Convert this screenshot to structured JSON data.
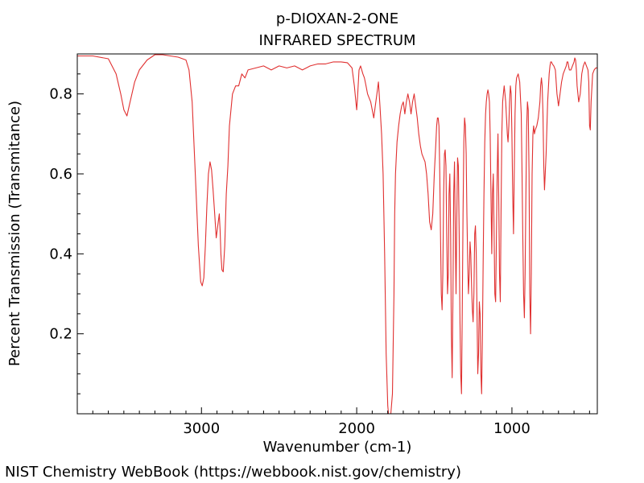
{
  "chart_data": {
    "type": "line",
    "title": "p-DIOXAN-2-ONE",
    "subtitle": "INFRARED SPECTRUM",
    "xlabel": "Wavenumber (cm-1)",
    "ylabel": "Percent Transmission (Transmitance)",
    "xlim": [
      3800,
      450
    ],
    "ylim": [
      0.0,
      0.9
    ],
    "x_reversed": true,
    "x_ticks": [
      3000,
      2000,
      1000
    ],
    "x_tick_labels": [
      "3000",
      "2000",
      "1000"
    ],
    "y_ticks": [
      0.2,
      0.4,
      0.6,
      0.8
    ],
    "y_tick_labels": [
      "0.2",
      "0.4",
      "0.6",
      "0.8"
    ],
    "grid": false,
    "line_color": "#e03030",
    "series": [
      {
        "x": [
          3800,
          3700,
          3600,
          3550,
          3520,
          3500,
          3480,
          3460,
          3430,
          3400,
          3350,
          3300,
          3250,
          3200,
          3150,
          3100,
          3080,
          3060,
          3040,
          3020,
          3005,
          2995,
          2985,
          2975,
          2965,
          2955,
          2945,
          2935,
          2925,
          2915,
          2905,
          2895,
          2885,
          2880,
          2875,
          2868,
          2860,
          2850,
          2840,
          2830,
          2820,
          2800,
          2780,
          2760,
          2740,
          2720,
          2700,
          2650,
          2600,
          2550,
          2500,
          2450,
          2400,
          2350,
          2300,
          2250,
          2200,
          2150,
          2100,
          2060,
          2030,
          2015,
          2005,
          2000,
          1995,
          1985,
          1975,
          1960,
          1950,
          1940,
          1930,
          1920,
          1910,
          1900,
          1890,
          1880,
          1870,
          1860,
          1850,
          1840,
          1830,
          1820,
          1810,
          1800,
          1795,
          1790,
          1785,
          1780,
          1770,
          1760,
          1755,
          1750,
          1740,
          1730,
          1720,
          1710,
          1700,
          1690,
          1680,
          1670,
          1660,
          1650,
          1640,
          1630,
          1620,
          1610,
          1600,
          1590,
          1580,
          1570,
          1560,
          1550,
          1540,
          1530,
          1520,
          1510,
          1500,
          1490,
          1485,
          1480,
          1475,
          1470,
          1465,
          1460,
          1455,
          1450,
          1445,
          1440,
          1435,
          1430,
          1425,
          1420,
          1415,
          1410,
          1405,
          1400,
          1395,
          1390,
          1385,
          1380,
          1375,
          1370,
          1365,
          1360,
          1355,
          1350,
          1345,
          1340,
          1335,
          1330,
          1325,
          1320,
          1315,
          1310,
          1305,
          1300,
          1295,
          1290,
          1285,
          1280,
          1275,
          1270,
          1265,
          1260,
          1255,
          1250,
          1245,
          1240,
          1235,
          1230,
          1225,
          1220,
          1215,
          1210,
          1205,
          1200,
          1195,
          1190,
          1185,
          1180,
          1175,
          1170,
          1165,
          1160,
          1155,
          1150,
          1145,
          1140,
          1135,
          1130,
          1125,
          1120,
          1115,
          1110,
          1105,
          1100,
          1095,
          1090,
          1085,
          1080,
          1075,
          1070,
          1065,
          1060,
          1055,
          1050,
          1045,
          1040,
          1035,
          1030,
          1025,
          1020,
          1015,
          1010,
          1005,
          1000,
          995,
          990,
          985,
          980,
          975,
          970,
          960,
          950,
          940,
          935,
          930,
          925,
          920,
          915,
          910,
          905,
          900,
          895,
          890,
          885,
          880,
          875,
          870,
          865,
          860,
          855,
          850,
          840,
          830,
          820,
          815,
          810,
          805,
          800,
          795,
          790,
          780,
          770,
          760,
          755,
          750,
          745,
          740,
          730,
          720,
          710,
          700,
          690,
          680,
          670,
          660,
          650,
          645,
          640,
          635,
          630,
          620,
          610,
          600,
          595,
          590,
          585,
          580,
          570,
          560,
          550,
          540,
          530,
          520,
          510,
          505,
          500,
          495,
          490,
          480,
          470,
          460,
          450
        ],
        "y": [
          0.895,
          0.895,
          0.888,
          0.85,
          0.8,
          0.76,
          0.745,
          0.78,
          0.83,
          0.86,
          0.885,
          0.898,
          0.898,
          0.895,
          0.892,
          0.885,
          0.86,
          0.78,
          0.6,
          0.42,
          0.33,
          0.32,
          0.34,
          0.42,
          0.52,
          0.6,
          0.63,
          0.61,
          0.56,
          0.5,
          0.44,
          0.47,
          0.5,
          0.46,
          0.4,
          0.36,
          0.355,
          0.42,
          0.55,
          0.62,
          0.72,
          0.8,
          0.82,
          0.82,
          0.85,
          0.84,
          0.86,
          0.865,
          0.87,
          0.86,
          0.87,
          0.865,
          0.87,
          0.86,
          0.87,
          0.875,
          0.875,
          0.88,
          0.88,
          0.878,
          0.865,
          0.82,
          0.78,
          0.76,
          0.79,
          0.86,
          0.87,
          0.85,
          0.84,
          0.82,
          0.8,
          0.79,
          0.78,
          0.76,
          0.74,
          0.77,
          0.8,
          0.83,
          0.77,
          0.7,
          0.6,
          0.4,
          0.15,
          0.02,
          0.0,
          0.0,
          0.0,
          0.0,
          0.05,
          0.3,
          0.5,
          0.6,
          0.68,
          0.72,
          0.75,
          0.77,
          0.78,
          0.75,
          0.78,
          0.8,
          0.78,
          0.75,
          0.78,
          0.8,
          0.77,
          0.74,
          0.7,
          0.67,
          0.65,
          0.64,
          0.63,
          0.6,
          0.55,
          0.48,
          0.46,
          0.5,
          0.6,
          0.68,
          0.72,
          0.74,
          0.74,
          0.72,
          0.6,
          0.45,
          0.3,
          0.26,
          0.35,
          0.55,
          0.65,
          0.66,
          0.62,
          0.45,
          0.3,
          0.35,
          0.55,
          0.6,
          0.45,
          0.2,
          0.09,
          0.3,
          0.55,
          0.63,
          0.45,
          0.3,
          0.5,
          0.64,
          0.62,
          0.45,
          0.25,
          0.1,
          0.05,
          0.25,
          0.5,
          0.68,
          0.74,
          0.72,
          0.65,
          0.5,
          0.38,
          0.3,
          0.35,
          0.43,
          0.4,
          0.32,
          0.26,
          0.23,
          0.3,
          0.45,
          0.47,
          0.4,
          0.25,
          0.1,
          0.15,
          0.28,
          0.25,
          0.1,
          0.05,
          0.2,
          0.4,
          0.55,
          0.68,
          0.75,
          0.78,
          0.8,
          0.81,
          0.8,
          0.78,
          0.7,
          0.55,
          0.4,
          0.55,
          0.6,
          0.45,
          0.3,
          0.28,
          0.45,
          0.6,
          0.7,
          0.55,
          0.35,
          0.28,
          0.5,
          0.7,
          0.78,
          0.8,
          0.82,
          0.8,
          0.78,
          0.74,
          0.7,
          0.68,
          0.72,
          0.78,
          0.82,
          0.8,
          0.7,
          0.55,
          0.45,
          0.6,
          0.75,
          0.82,
          0.84,
          0.85,
          0.83,
          0.75,
          0.6,
          0.45,
          0.3,
          0.24,
          0.35,
          0.55,
          0.72,
          0.78,
          0.76,
          0.6,
          0.3,
          0.2,
          0.35,
          0.6,
          0.7,
          0.72,
          0.7,
          0.71,
          0.72,
          0.74,
          0.78,
          0.82,
          0.84,
          0.82,
          0.75,
          0.62,
          0.56,
          0.65,
          0.78,
          0.85,
          0.87,
          0.88,
          0.88,
          0.875,
          0.87,
          0.86,
          0.8,
          0.77,
          0.8,
          0.83,
          0.85,
          0.86,
          0.87,
          0.88,
          0.88,
          0.87,
          0.86,
          0.86,
          0.87,
          0.88,
          0.89,
          0.885,
          0.86,
          0.82,
          0.78,
          0.8,
          0.85,
          0.87,
          0.88,
          0.87,
          0.86,
          0.83,
          0.72,
          0.71,
          0.78,
          0.85,
          0.86,
          0.865,
          0.865
        ]
      }
    ]
  },
  "footer": "NIST Chemistry WebBook (https://webbook.nist.gov/chemistry)"
}
